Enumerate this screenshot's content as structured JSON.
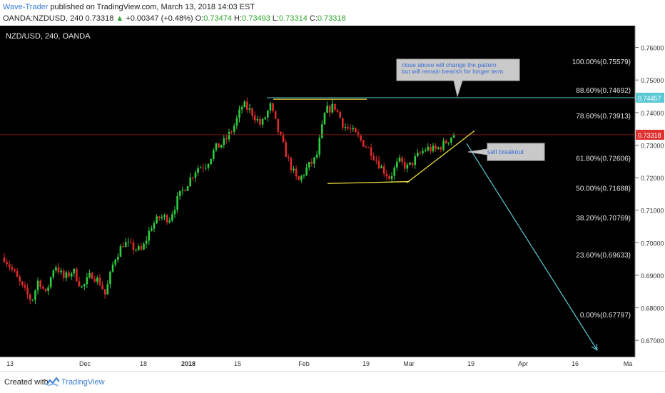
{
  "header": {
    "author": "Wave-Trader",
    "published": "published on TradingView.com, March 13, 2018 14:03 EST",
    "symbol": "OANDA:NZDUSD, 240",
    "last": "0.73318",
    "change": "+0.00347 (+0.48%)",
    "o_label": "O:",
    "o": "0.73474",
    "h_label": "H:",
    "h": "0.73493",
    "l_label": "L:",
    "l": "0.73314",
    "c_label": "C:",
    "c": "0.73318"
  },
  "footer": {
    "created_with": "Created with",
    "brand": "TradingView"
  },
  "chart_data": {
    "type": "candlestick",
    "title": "NZD/USD, 240, OANDA",
    "ylim": [
      0.665,
      0.7667
    ],
    "y_ticks": [
      "0.76000",
      "0.75000",
      "0.74000",
      "0.73000",
      "0.72000",
      "0.71000",
      "0.70000",
      "0.69000",
      "0.68000",
      "0.67000"
    ],
    "y_tick_values": [
      0.76,
      0.75,
      0.74,
      0.73,
      0.72,
      0.71,
      0.7,
      0.69,
      0.68,
      0.67
    ],
    "x_ticks": [
      "13",
      "Dec",
      "18",
      "2018",
      "15",
      "Feb",
      "19",
      "Mar",
      "19",
      "Apr",
      "16",
      "Ma"
    ],
    "x_tick_bold": [
      false,
      false,
      false,
      true,
      false,
      false,
      false,
      false,
      false,
      false,
      false,
      false
    ],
    "price_path": [
      [
        0,
        0.6955
      ],
      [
        4,
        0.691
      ],
      [
        8,
        0.686
      ],
      [
        12,
        0.682
      ],
      [
        15,
        0.689
      ],
      [
        18,
        0.684
      ],
      [
        22,
        0.6935
      ],
      [
        26,
        0.689
      ],
      [
        30,
        0.6915
      ],
      [
        34,
        0.686
      ],
      [
        38,
        0.6905
      ],
      [
        42,
        0.6875
      ],
      [
        44,
        0.684
      ],
      [
        48,
        0.695
      ],
      [
        52,
        0.7
      ],
      [
        56,
        0.6985
      ],
      [
        60,
        0.6975
      ],
      [
        64,
        0.705
      ],
      [
        68,
        0.708
      ],
      [
        72,
        0.7075
      ],
      [
        76,
        0.714
      ],
      [
        80,
        0.7185
      ],
      [
        84,
        0.723
      ],
      [
        88,
        0.724
      ],
      [
        92,
        0.729
      ],
      [
        96,
        0.731
      ],
      [
        100,
        0.7355
      ],
      [
        104,
        0.7425
      ],
      [
        108,
        0.74
      ],
      [
        112,
        0.736
      ],
      [
        116,
        0.742
      ],
      [
        120,
        0.733
      ],
      [
        124,
        0.725
      ],
      [
        128,
        0.7185
      ],
      [
        132,
        0.723
      ],
      [
        136,
        0.726
      ],
      [
        140,
        0.7405
      ],
      [
        144,
        0.742
      ],
      [
        148,
        0.736
      ],
      [
        152,
        0.734
      ],
      [
        156,
        0.731
      ],
      [
        160,
        0.728
      ],
      [
        164,
        0.7235
      ],
      [
        168,
        0.72
      ],
      [
        172,
        0.725
      ],
      [
        176,
        0.723
      ],
      [
        180,
        0.7265
      ],
      [
        184,
        0.729
      ],
      [
        188,
        0.7285
      ],
      [
        192,
        0.7305
      ],
      [
        196,
        0.7335
      ]
    ],
    "fib_levels": [
      {
        "label": "100.00%(0.75579)",
        "value": 0.75579
      },
      {
        "label": "88.60%(0.74692)",
        "value": 0.74692
      },
      {
        "label": "78.60%(0.73913)",
        "value": 0.73913
      },
      {
        "label": "61.80%(0.72606)",
        "value": 0.72606
      },
      {
        "label": "50.00%(0.71688)",
        "value": 0.71688
      },
      {
        "label": "38.20%(0.70769)",
        "value": 0.70769
      },
      {
        "label": "23.60%(0.69633)",
        "value": 0.69633
      },
      {
        "label": "0.00%(0.67797)",
        "value": 0.67797
      }
    ],
    "horizontal_line": {
      "value": 0.74457,
      "label": "0.74457",
      "color": "#5bc8d6"
    },
    "current_price": {
      "value": 0.73318,
      "label": "0.73318",
      "color": "#e03030"
    },
    "annotations": [
      {
        "text_lines": [
          "close above will change the pattern",
          "but will remain bearish for longer term"
        ]
      },
      {
        "text_lines": [
          "sell breakout"
        ]
      }
    ],
    "colors": {
      "up": "#2ecc40",
      "down": "#e02a2a",
      "background": "#000000",
      "pattern": "#f0e040",
      "projection": "#5bc8d6"
    }
  }
}
